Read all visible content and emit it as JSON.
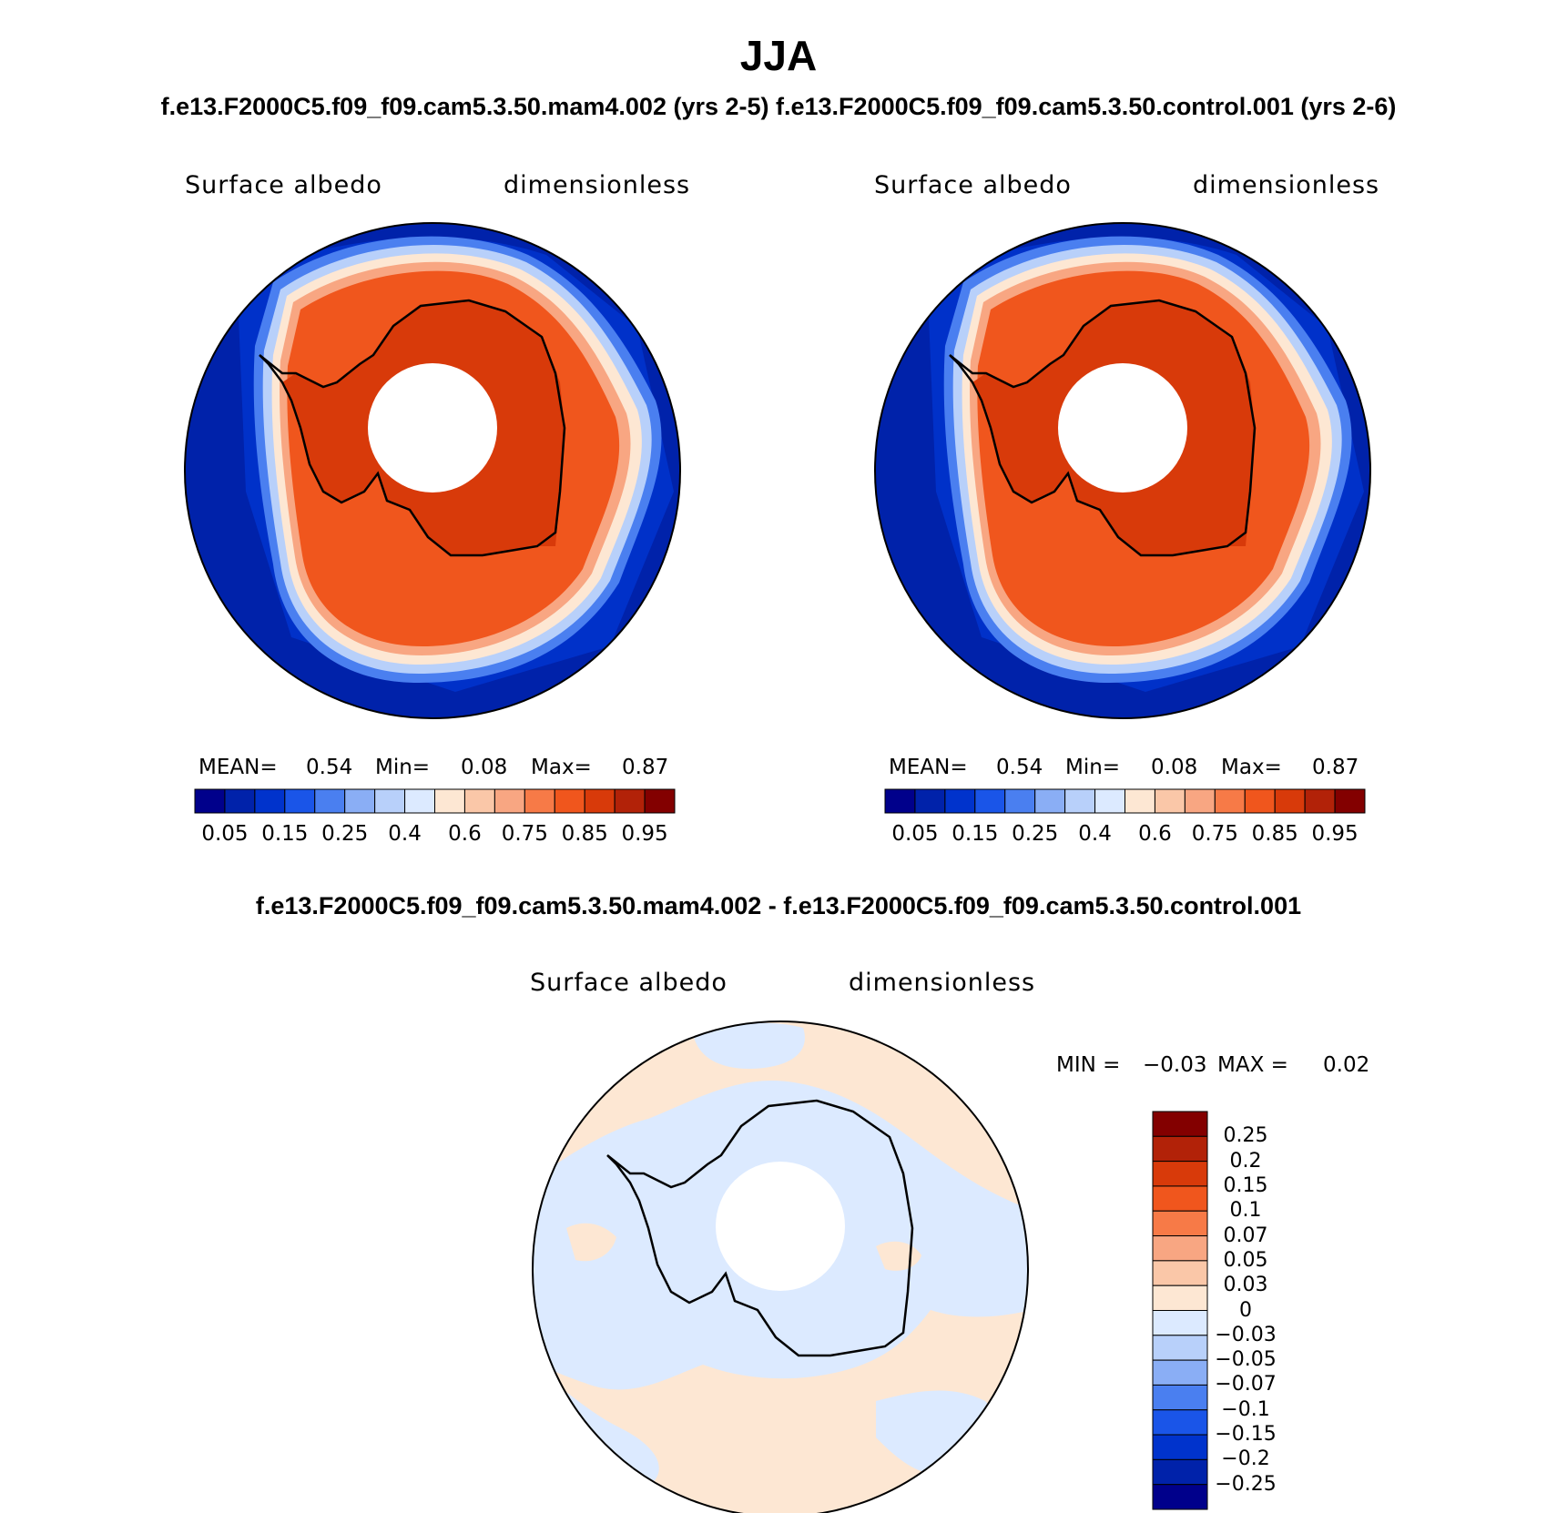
{
  "title": "JJA",
  "case_header": "f.e13.F2000C5.f09_f09.cam5.3.50.mam4.002 (yrs 2-5) f.e13.F2000C5.f09_f09.cam5.3.50.control.001 (yrs 2-6)",
  "diff_header": "f.e13.F2000C5.f09_f09.cam5.3.50.mam4.002 - f.e13.F2000C5.f09_f09.cam5.3.50.control.001",
  "panels": [
    {
      "variable": "Surface albedo",
      "units": "dimensionless",
      "mean_label": "MEAN=",
      "mean": "0.54",
      "min_label": "Min=",
      "min": "0.08",
      "max_label": "Max=",
      "max": "0.87"
    },
    {
      "variable": "Surface albedo",
      "units": "dimensionless",
      "mean_label": "MEAN=",
      "mean": "0.54",
      "min_label": "Min=",
      "min": "0.08",
      "max_label": "Max=",
      "max": "0.87"
    }
  ],
  "diff_panel": {
    "variable": "Surface albedo",
    "units": "dimensionless",
    "min_label": "MIN =",
    "min": "−0.03",
    "max_label": "MAX =",
    "max": "0.02"
  },
  "albedo_colorbar": {
    "colors": [
      "#00008b",
      "#0022aa",
      "#0033cc",
      "#1a55e8",
      "#4a7ff0",
      "#8aaef5",
      "#b8d0fa",
      "#dceaff",
      "#fde7d3",
      "#fac7a8",
      "#f8a682",
      "#f77a47",
      "#f0561d",
      "#d83a0a",
      "#b22208",
      "#830000"
    ],
    "ticks": [
      "0.05",
      "0.15",
      "0.25",
      "0.4",
      "0.6",
      "0.75",
      "0.85",
      "0.95"
    ],
    "tick_boundaries": [
      1,
      3,
      5,
      7,
      9,
      11,
      13,
      15
    ]
  },
  "diff_colorbar": {
    "colors_top_to_bottom": [
      "#830000",
      "#b22208",
      "#d83a0a",
      "#f0561d",
      "#f77a47",
      "#f8a682",
      "#fac7a8",
      "#fde7d3",
      "#dceaff",
      "#b8d0fa",
      "#8aaef5",
      "#4a7ff0",
      "#1a55e8",
      "#0033cc",
      "#0022aa",
      "#00008b"
    ],
    "ticks": [
      "0.25",
      "0.2",
      "0.15",
      "0.1",
      "0.07",
      "0.05",
      "0.03",
      "0",
      "−0.03",
      "−0.05",
      "−0.07",
      "−0.1",
      "−0.15",
      "−0.2",
      "−0.25"
    ]
  }
}
